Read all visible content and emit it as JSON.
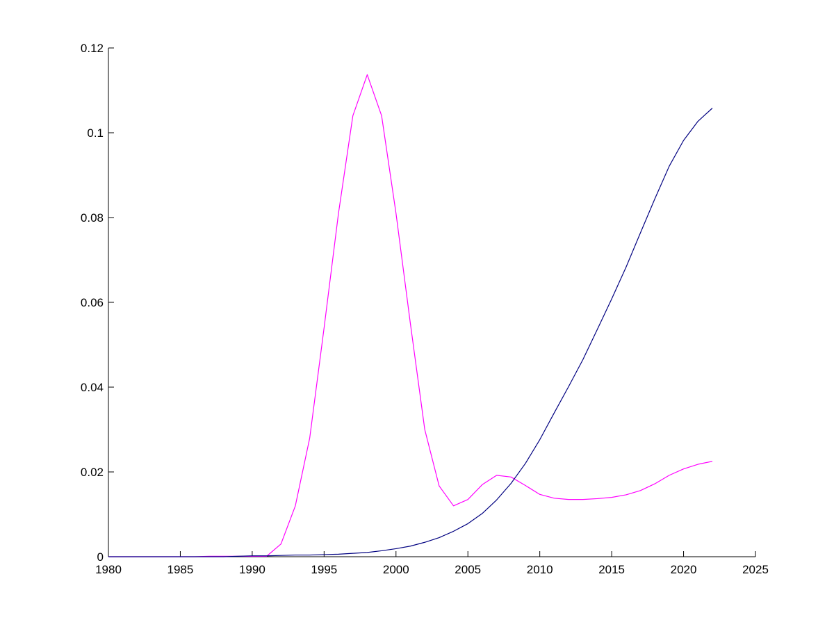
{
  "chart_data": {
    "type": "line",
    "xlim": [
      1980,
      2025
    ],
    "ylim": [
      0,
      0.12
    ],
    "x_ticks": [
      1980,
      1985,
      1990,
      1995,
      2000,
      2005,
      2010,
      2015,
      2020,
      2025
    ],
    "y_ticks": [
      0,
      0.02,
      0.04,
      0.06,
      0.08,
      0.1,
      0.12
    ],
    "x_tick_labels": [
      "1980",
      "1985",
      "1990",
      "1995",
      "2000",
      "2005",
      "2010",
      "2015",
      "2020",
      "2025"
    ],
    "y_tick_labels": [
      "0",
      "0.02",
      "0.04",
      "0.06",
      "0.08",
      "0.1",
      "0.12"
    ],
    "grid": false,
    "series": [
      {
        "color": "#ff00ff",
        "x": [
          1980,
          1981,
          1982,
          1983,
          1984,
          1985,
          1986,
          1987,
          1988,
          1989,
          1990,
          1991,
          1992,
          1993,
          1994,
          1995,
          1996,
          1997,
          1998,
          1999,
          2000,
          2001,
          2002,
          2003,
          2004,
          2005,
          2006,
          2007,
          2008,
          2009,
          2010,
          2011,
          2012,
          2013,
          2014,
          2015,
          2016,
          2017,
          2018,
          2019,
          2020,
          2021,
          2022
        ],
        "y": [
          0,
          0,
          0,
          0,
          0,
          0,
          0,
          0.0001,
          0.0001,
          0.0001,
          0.0001,
          0.0001,
          0.003,
          0.012,
          0.028,
          0.054,
          0.081,
          0.104,
          0.1137,
          0.104,
          0.081,
          0.055,
          0.03,
          0.0167,
          0.012,
          0.0135,
          0.017,
          0.0192,
          0.0188,
          0.0168,
          0.0147,
          0.0138,
          0.0135,
          0.0135,
          0.0137,
          0.014,
          0.0146,
          0.0156,
          0.0172,
          0.0192,
          0.0207,
          0.0218,
          0.0225
        ]
      },
      {
        "color": "#000080",
        "x": [
          1980,
          1981,
          1982,
          1983,
          1984,
          1985,
          1986,
          1987,
          1988,
          1989,
          1990,
          1991,
          1992,
          1993,
          1994,
          1995,
          1996,
          1997,
          1998,
          1999,
          2000,
          2001,
          2002,
          2003,
          2004,
          2005,
          2006,
          2007,
          2008,
          2009,
          2010,
          2011,
          2012,
          2013,
          2014,
          2015,
          2016,
          2017,
          2018,
          2019,
          2020,
          2021,
          2022
        ],
        "y": [
          0,
          0,
          0,
          0,
          0,
          0,
          0,
          0,
          0,
          0.0001,
          0.0002,
          0.0002,
          0.0003,
          0.0004,
          0.0004,
          0.0005,
          0.0006,
          0.0008,
          0.001,
          0.0014,
          0.0019,
          0.0025,
          0.0034,
          0.0045,
          0.006,
          0.0078,
          0.0102,
          0.0134,
          0.0173,
          0.022,
          0.0276,
          0.0339,
          0.0401,
          0.0465,
          0.0536,
          0.0608,
          0.0683,
          0.0764,
          0.0844,
          0.0921,
          0.0982,
          0.1027,
          0.1058
        ]
      }
    ]
  }
}
